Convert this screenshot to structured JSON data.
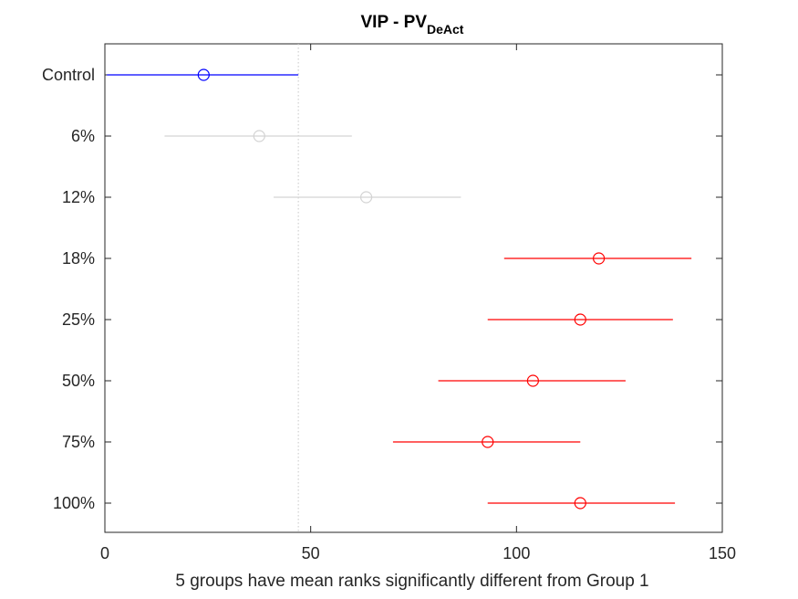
{
  "chart_data": {
    "type": "multiple-comparison-interval",
    "title": "VIP - PV",
    "title_subscript": "DeAct",
    "xlabel": "5 groups have mean ranks significantly different from Group 1",
    "xlim": [
      0,
      150
    ],
    "xticks": [
      0,
      50,
      100,
      150
    ],
    "reference_line_x": 47,
    "colors": {
      "reference": "#0000ff",
      "not_significant": "#d3d3d3",
      "significant": "#ff0000",
      "axes": "#262626",
      "reference_line": "#c8c8c8"
    },
    "groups": [
      {
        "label": "Control",
        "mean": 24,
        "lower": 0.5,
        "upper": 47,
        "status": "reference"
      },
      {
        "label": "6%",
        "mean": 37.5,
        "lower": 14.5,
        "upper": 60,
        "status": "not_significant"
      },
      {
        "label": "12%",
        "mean": 63.5,
        "lower": 41,
        "upper": 86.5,
        "status": "not_significant"
      },
      {
        "label": "18%",
        "mean": 120,
        "lower": 97,
        "upper": 142.5,
        "status": "significant"
      },
      {
        "label": "25%",
        "mean": 115.5,
        "lower": 93,
        "upper": 138,
        "status": "significant"
      },
      {
        "label": "50%",
        "mean": 104,
        "lower": 81,
        "upper": 126.5,
        "status": "significant"
      },
      {
        "label": "75%",
        "mean": 93,
        "lower": 70,
        "upper": 115.5,
        "status": "significant"
      },
      {
        "label": "100%",
        "mean": 115.5,
        "lower": 93,
        "upper": 138.5,
        "status": "significant"
      }
    ]
  }
}
